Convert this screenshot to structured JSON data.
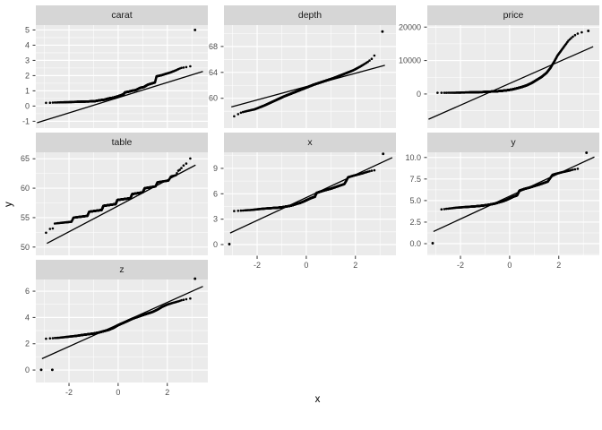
{
  "chart_data": {
    "type": "scatter",
    "variant": "qq_plot_faceted",
    "xlabel": "x",
    "ylabel": "y",
    "facet_titles": [
      "carat",
      "depth",
      "price",
      "table",
      "x",
      "y",
      "z"
    ],
    "xlim": [
      -3.35,
      3.65
    ],
    "x_ticks": [
      {
        "v": -2,
        "label": "-2"
      },
      {
        "v": 0,
        "label": "0"
      },
      {
        "v": 2,
        "label": "2"
      }
    ],
    "x_minor": [
      -3,
      -1,
      1,
      3
    ],
    "colors": {
      "background": "#FFFFFF",
      "panel_bg": "#EBEBEB",
      "strip_bg": "#D6D6D6",
      "grid": "#FFFFFF",
      "point": "#000000",
      "line": "#000000",
      "axis_text": "#4D4D4D",
      "tick_mark": "#333333",
      "strip_text": "#1A1A1A",
      "title_text": "#000000"
    },
    "facets": [
      {
        "label": "carat",
        "ylim": [
          -1.45,
          5.32
        ],
        "yticks": [
          {
            "v": -1,
            "label": "-1"
          },
          {
            "v": 0,
            "label": "0"
          },
          {
            "v": 1,
            "label": "1"
          },
          {
            "v": 2,
            "label": "2"
          },
          {
            "v": 3,
            "label": "3"
          },
          {
            "v": 4,
            "label": "4"
          },
          {
            "v": 5,
            "label": "5"
          }
        ],
        "yminor": [
          -0.5,
          0.5,
          1.5,
          2.5,
          3.5,
          4.5
        ],
        "line": {
          "slope": 0.5,
          "intercept": 0.55,
          "q0": -3.3,
          "q1": 3.45
        },
        "band": [
          [
            -3.05,
            0.2
          ],
          [
            -2.6,
            0.23
          ],
          [
            -2.2,
            0.25
          ],
          [
            -1.8,
            0.27
          ],
          [
            -1.5,
            0.29
          ],
          [
            -1.2,
            0.3
          ],
          [
            -0.95,
            0.32
          ],
          [
            -0.75,
            0.38
          ],
          [
            -0.55,
            0.42
          ],
          [
            -0.38,
            0.5
          ],
          [
            -0.2,
            0.55
          ],
          [
            -0.05,
            0.62
          ],
          [
            0.1,
            0.7
          ],
          [
            0.22,
            0.78
          ],
          [
            0.28,
            0.9
          ],
          [
            0.45,
            0.95
          ],
          [
            0.55,
            1.0
          ],
          [
            0.72,
            1.05
          ],
          [
            0.9,
            1.2
          ],
          [
            1.05,
            1.25
          ],
          [
            1.2,
            1.4
          ],
          [
            1.4,
            1.5
          ],
          [
            1.5,
            1.55
          ],
          [
            1.56,
            1.95
          ],
          [
            1.75,
            2.02
          ],
          [
            1.95,
            2.12
          ],
          [
            2.15,
            2.22
          ],
          [
            2.35,
            2.35
          ],
          [
            2.55,
            2.5
          ],
          [
            2.75,
            2.55
          ],
          [
            2.95,
            2.62
          ]
        ],
        "outliers": [
          [
            3.13,
            5.0
          ]
        ]
      },
      {
        "label": "depth",
        "ylim": [
          55.4,
          71.3
        ],
        "yticks": [
          {
            "v": 60,
            "label": "60"
          },
          {
            "v": 64,
            "label": "64"
          },
          {
            "v": 68,
            "label": "68"
          }
        ],
        "yminor": [
          58,
          62,
          66,
          70
        ],
        "line": {
          "slope": 1.03,
          "intercept": 61.8,
          "q0": -3.05,
          "q1": 3.2
        },
        "band": [
          [
            -3.1,
            56.7
          ],
          [
            -2.95,
            57.2
          ],
          [
            -2.8,
            57.5
          ],
          [
            -2.65,
            57.8
          ],
          [
            -2.45,
            58.0
          ],
          [
            -2.1,
            58.3
          ],
          [
            -1.7,
            58.9
          ],
          [
            -1.3,
            59.6
          ],
          [
            -0.9,
            60.3
          ],
          [
            -0.5,
            60.9
          ],
          [
            -0.1,
            61.5
          ],
          [
            0.3,
            62.1
          ],
          [
            0.7,
            62.6
          ],
          [
            1.1,
            63.1
          ],
          [
            1.5,
            63.7
          ],
          [
            1.9,
            64.3
          ],
          [
            2.2,
            64.9
          ],
          [
            2.5,
            65.6
          ],
          [
            2.7,
            66.2
          ],
          [
            2.9,
            67.3
          ]
        ],
        "outliers": [
          [
            3.1,
            70.3
          ]
        ]
      },
      {
        "label": "price",
        "ylim": [
          -10200,
          20600
        ],
        "yticks": [
          {
            "v": 0,
            "label": "0"
          },
          {
            "v": 10000,
            "label": "10000"
          },
          {
            "v": 20000,
            "label": "20000"
          }
        ],
        "yminor": [
          -5000,
          5000,
          15000
        ],
        "line": {
          "slope": 3240,
          "intercept": 3140,
          "q0": -3.3,
          "q1": 3.4
        },
        "band": [
          [
            -3.1,
            340
          ],
          [
            -2.6,
            360
          ],
          [
            -2.1,
            400
          ],
          [
            -1.6,
            480
          ],
          [
            -1.1,
            580
          ],
          [
            -0.8,
            700
          ],
          [
            -0.5,
            820
          ],
          [
            -0.3,
            950
          ],
          [
            -0.1,
            1120
          ],
          [
            0.1,
            1350
          ],
          [
            0.3,
            1700
          ],
          [
            0.5,
            2100
          ],
          [
            0.7,
            2600
          ],
          [
            0.9,
            3300
          ],
          [
            1.1,
            4200
          ],
          [
            1.3,
            5100
          ],
          [
            1.5,
            6300
          ],
          [
            1.65,
            7700
          ],
          [
            1.8,
            9500
          ],
          [
            1.95,
            11500
          ],
          [
            2.1,
            13000
          ],
          [
            2.25,
            14500
          ],
          [
            2.4,
            16000
          ],
          [
            2.55,
            17000
          ],
          [
            2.7,
            17800
          ],
          [
            2.85,
            18300
          ],
          [
            3.05,
            18600
          ]
        ],
        "outliers": [
          [
            3.2,
            18850
          ]
        ]
      },
      {
        "label": "table",
        "ylim": [
          48.6,
          66.1
        ],
        "yticks": [
          {
            "v": 50,
            "label": "50"
          },
          {
            "v": 55,
            "label": "55"
          },
          {
            "v": 60,
            "label": "60"
          },
          {
            "v": 65,
            "label": "65"
          }
        ],
        "yminor": [
          52.5,
          57.5,
          62.5
        ],
        "line": {
          "slope": 2.2,
          "intercept": 57.0,
          "q0": -2.9,
          "q1": 3.15
        },
        "band": [
          [
            -3.1,
            52
          ],
          [
            -2.95,
            52.2
          ],
          [
            -2.9,
            53
          ],
          [
            -2.62,
            53.2
          ],
          [
            -2.58,
            54
          ],
          [
            -1.9,
            54.3
          ],
          [
            -1.82,
            55
          ],
          [
            -1.25,
            55.3
          ],
          [
            -1.18,
            56
          ],
          [
            -0.67,
            56.3
          ],
          [
            -0.6,
            57
          ],
          [
            -0.1,
            57.3
          ],
          [
            -0.03,
            58
          ],
          [
            0.5,
            58.3
          ],
          [
            0.57,
            59
          ],
          [
            1.0,
            59.3
          ],
          [
            1.08,
            60
          ],
          [
            1.52,
            60.3
          ],
          [
            1.6,
            61
          ],
          [
            2.05,
            61.3
          ],
          [
            2.15,
            62
          ],
          [
            2.35,
            62.2
          ],
          [
            2.45,
            63
          ],
          [
            2.55,
            63.2
          ],
          [
            2.62,
            63.8
          ],
          [
            2.75,
            64.0
          ],
          [
            2.85,
            64.8
          ],
          [
            2.95,
            65.1
          ],
          [
            3.02,
            65.3
          ],
          [
            3.08,
            66.0
          ]
        ],
        "outliers": []
      },
      {
        "label": "x",
        "ylim": [
          -1.27,
          10.9
        ],
        "yticks": [
          {
            "v": 0,
            "label": "0"
          },
          {
            "v": 3,
            "label": "3"
          },
          {
            "v": 6,
            "label": "6"
          },
          {
            "v": 9,
            "label": "9"
          }
        ],
        "yminor": [
          1.5,
          4.5,
          7.5,
          10.5
        ],
        "line": {
          "slope": 1.35,
          "intercept": 5.55,
          "q0": -3.1,
          "q1": 3.5
        },
        "band": [
          [
            -2.95,
            3.95
          ],
          [
            -2.7,
            4.0
          ],
          [
            -2.45,
            4.05
          ],
          [
            -2.2,
            4.1
          ],
          [
            -1.95,
            4.18
          ],
          [
            -1.7,
            4.25
          ],
          [
            -1.45,
            4.3
          ],
          [
            -1.2,
            4.35
          ],
          [
            -1.0,
            4.4
          ],
          [
            -0.85,
            4.48
          ],
          [
            -0.7,
            4.55
          ],
          [
            -0.55,
            4.65
          ],
          [
            -0.4,
            4.8
          ],
          [
            -0.25,
            4.92
          ],
          [
            -0.1,
            5.1
          ],
          [
            0.05,
            5.3
          ],
          [
            0.2,
            5.5
          ],
          [
            0.35,
            5.65
          ],
          [
            0.42,
            6.1
          ],
          [
            0.6,
            6.28
          ],
          [
            0.8,
            6.45
          ],
          [
            1.0,
            6.6
          ],
          [
            1.2,
            6.8
          ],
          [
            1.4,
            7.0
          ],
          [
            1.55,
            7.15
          ],
          [
            1.62,
            7.5
          ],
          [
            1.7,
            7.95
          ],
          [
            1.9,
            8.12
          ],
          [
            2.1,
            8.27
          ],
          [
            2.3,
            8.42
          ],
          [
            2.5,
            8.6
          ],
          [
            2.7,
            8.75
          ],
          [
            2.9,
            8.82
          ]
        ],
        "outliers": [
          [
            -3.13,
            0.05
          ],
          [
            3.13,
            10.72
          ]
        ]
      },
      {
        "label": "y",
        "ylim": [
          -1.35,
          10.6
        ],
        "yticks": [
          {
            "v": 0,
            "label": "0.0"
          },
          {
            "v": 2.5,
            "label": "2.5"
          },
          {
            "v": 5,
            "label": "5.0"
          },
          {
            "v": 7.5,
            "label": "7.5"
          },
          {
            "v": 10,
            "label": "10.0"
          }
        ],
        "yminor": [
          -1.25,
          1.25,
          3.75,
          6.25,
          8.75
        ],
        "line": {
          "slope": 1.32,
          "intercept": 5.5,
          "q0": -3.1,
          "q1": 3.45
        },
        "band": [
          [
            -2.9,
            3.95
          ],
          [
            -2.65,
            4.02
          ],
          [
            -2.4,
            4.1
          ],
          [
            -2.15,
            4.18
          ],
          [
            -1.9,
            4.23
          ],
          [
            -1.65,
            4.28
          ],
          [
            -1.4,
            4.33
          ],
          [
            -1.15,
            4.4
          ],
          [
            -0.95,
            4.47
          ],
          [
            -0.78,
            4.55
          ],
          [
            -0.6,
            4.65
          ],
          [
            -0.45,
            4.78
          ],
          [
            -0.3,
            4.9
          ],
          [
            -0.15,
            5.05
          ],
          [
            0.0,
            5.25
          ],
          [
            0.15,
            5.45
          ],
          [
            0.3,
            5.6
          ],
          [
            0.4,
            6.15
          ],
          [
            0.6,
            6.35
          ],
          [
            0.8,
            6.5
          ],
          [
            1.0,
            6.68
          ],
          [
            1.2,
            6.85
          ],
          [
            1.4,
            7.05
          ],
          [
            1.55,
            7.2
          ],
          [
            1.65,
            7.6
          ],
          [
            1.75,
            8.0
          ],
          [
            1.95,
            8.15
          ],
          [
            2.15,
            8.3
          ],
          [
            2.4,
            8.45
          ],
          [
            2.6,
            8.6
          ],
          [
            2.8,
            8.7
          ]
        ],
        "outliers": [
          [
            -3.13,
            0.05
          ],
          [
            3.13,
            10.55
          ]
        ]
      },
      {
        "label": "z",
        "ylim": [
          -0.95,
          6.89
        ],
        "yticks": [
          {
            "v": 0,
            "label": "0"
          },
          {
            "v": 2,
            "label": "2"
          },
          {
            "v": 4,
            "label": "4"
          },
          {
            "v": 6,
            "label": "6"
          }
        ],
        "yminor": [
          1,
          3,
          5
        ],
        "line": {
          "slope": 0.84,
          "intercept": 3.47,
          "q0": -3.1,
          "q1": 3.45
        },
        "band": [
          [
            -2.95,
            2.38
          ],
          [
            -2.7,
            2.42
          ],
          [
            -2.45,
            2.45
          ],
          [
            -2.2,
            2.5
          ],
          [
            -1.95,
            2.55
          ],
          [
            -1.7,
            2.6
          ],
          [
            -1.45,
            2.67
          ],
          [
            -1.2,
            2.73
          ],
          [
            -1.0,
            2.78
          ],
          [
            -0.8,
            2.85
          ],
          [
            -0.6,
            2.95
          ],
          [
            -0.4,
            3.05
          ],
          [
            -0.2,
            3.2
          ],
          [
            0.0,
            3.42
          ],
          [
            0.2,
            3.58
          ],
          [
            0.4,
            3.75
          ],
          [
            0.6,
            3.92
          ],
          [
            0.8,
            4.05
          ],
          [
            1.0,
            4.18
          ],
          [
            1.2,
            4.3
          ],
          [
            1.4,
            4.42
          ],
          [
            1.6,
            4.6
          ],
          [
            1.8,
            4.82
          ],
          [
            2.0,
            4.98
          ],
          [
            2.2,
            5.1
          ],
          [
            2.4,
            5.2
          ],
          [
            2.6,
            5.32
          ],
          [
            2.8,
            5.4
          ],
          [
            2.95,
            5.45
          ]
        ],
        "outliers": [
          [
            -3.13,
            0.02
          ],
          [
            -2.68,
            0.02
          ],
          [
            3.13,
            6.95
          ]
        ]
      }
    ]
  }
}
